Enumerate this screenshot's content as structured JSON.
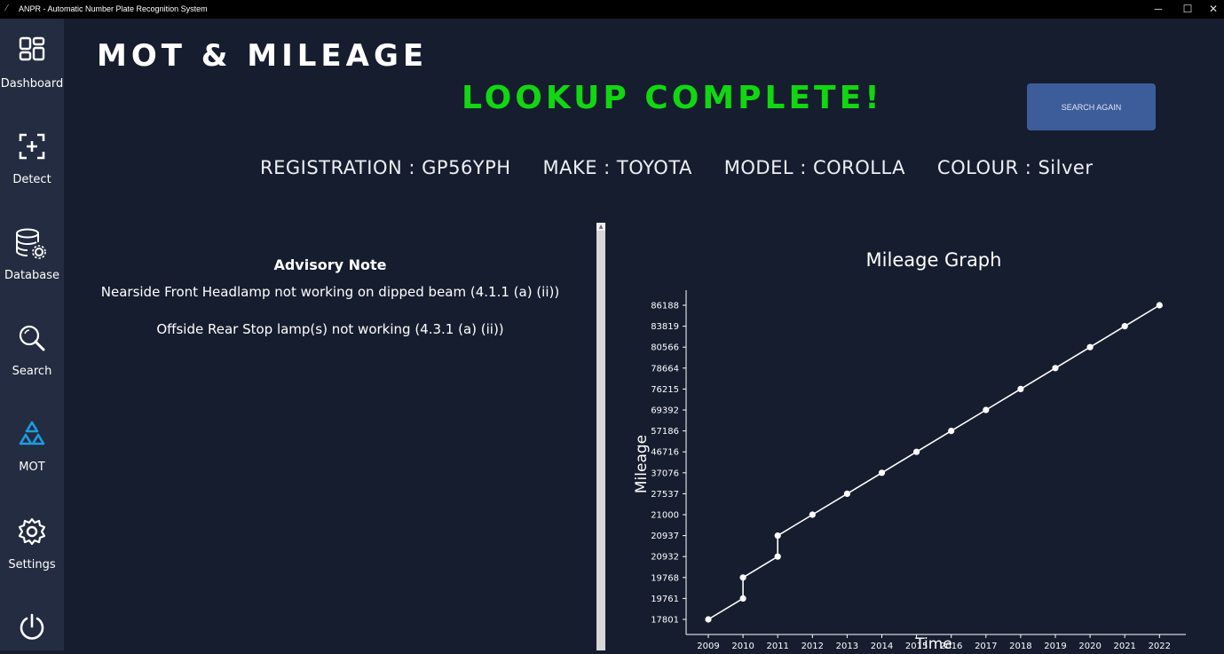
{
  "window": {
    "title": "ANPR - Automatic Number Plate Recognition System",
    "minimize": "─",
    "maximize": "☐",
    "close": "✕"
  },
  "sidebar": {
    "items": [
      {
        "label": "Dashboard",
        "icon": "dashboard-icon"
      },
      {
        "label": "Detect",
        "icon": "detect-icon"
      },
      {
        "label": "Database",
        "icon": "database-icon"
      },
      {
        "label": "Search",
        "icon": "search-icon"
      },
      {
        "label": "MOT",
        "icon": "mot-icon"
      },
      {
        "label": "Settings",
        "icon": "gear-icon"
      },
      {
        "label": "",
        "icon": "power-icon"
      }
    ],
    "active": "MOT",
    "active_color": "#1e9be0"
  },
  "main": {
    "title": "MOT & MILEAGE",
    "status": "LOOKUP COMPLETE!",
    "status_color": "#11d711",
    "search_again_label": "SEARCH AGAIN",
    "vehicle_info": "REGISTRATION : GP56YPH     MAKE : TOYOTA     MODEL : COROLLA     COLOUR : Silver"
  },
  "advisory": {
    "heading": "Advisory Note",
    "items": [
      "Nearside Front Headlamp not working on dipped beam (4.1.1 (a) (ii))",
      "Offside Rear Stop lamp(s) not working (4.3.1 (a) (ii))"
    ]
  },
  "chart_data": {
    "type": "line",
    "title": "Mileage Graph",
    "xlabel": "Time",
    "ylabel": "Mileage",
    "categories": [
      "2009",
      "2010",
      "2011",
      "2012",
      "2013",
      "2014",
      "2015",
      "2016",
      "2017",
      "2018",
      "2019",
      "2020",
      "2021",
      "2022"
    ],
    "y_ticks": [
      "17801",
      "19761",
      "19768",
      "20932",
      "20937",
      "21000",
      "27537",
      "37076",
      "46716",
      "57186",
      "69392",
      "76215",
      "78664",
      "80566",
      "83819",
      "86188"
    ],
    "points": [
      {
        "x": "2009",
        "y": 17801
      },
      {
        "x": "2010",
        "y": 19761
      },
      {
        "x": "2010",
        "y": 19768
      },
      {
        "x": "2011",
        "y": 20932
      },
      {
        "x": "2011",
        "y": 20937
      },
      {
        "x": "2012",
        "y": 21000
      },
      {
        "x": "2013",
        "y": 27537
      },
      {
        "x": "2014",
        "y": 37076
      },
      {
        "x": "2015",
        "y": 46716
      },
      {
        "x": "2016",
        "y": 57186
      },
      {
        "x": "2017",
        "y": 69392
      },
      {
        "x": "2018",
        "y": 76215
      },
      {
        "x": "2019",
        "y": 78664
      },
      {
        "x": "2020",
        "y": 80566
      },
      {
        "x": "2021",
        "y": 83819
      },
      {
        "x": "2022",
        "y": 86188
      }
    ],
    "y_axis_scale": "categorical (each observed value is its own evenly spaced tick)",
    "line_color": "#ffffff",
    "grid": false
  }
}
